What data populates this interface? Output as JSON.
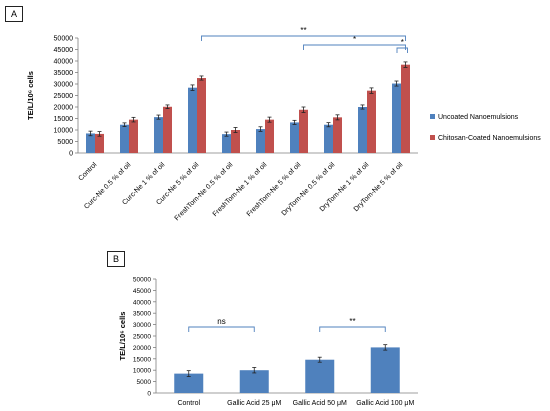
{
  "panels": {
    "a_label": "A",
    "b_label": "B"
  },
  "colors": {
    "uncoated": "#4f81bd",
    "coated": "#c0504d",
    "bracket": "#4f81bd",
    "error": "#222222",
    "axis": "#7f7f7f",
    "text": "#000000"
  },
  "chart_data": [
    {
      "panel": "A",
      "type": "bar",
      "ylabel": "TE/L/10⁶ cells",
      "ylim": [
        0,
        50000
      ],
      "yticks": [
        "0",
        "5000",
        "10000",
        "15000",
        "20000",
        "25000",
        "30000",
        "35000",
        "40000",
        "45000",
        "50000"
      ],
      "legend_position": "right",
      "categories": [
        "Control",
        "Curc-Ne 0.5 % of oil",
        "Curc-Ne 1 % of oil",
        "Curc-Ne 5 % of oil",
        "FreshTom-Ne 0.5 % of oil",
        "FreshTom-Ne 1 % of oil",
        "FreshTom-Ne 5 % of oil",
        "DryTom-Ne 0.5 % of oil",
        "DryTom-Ne 1 % of oil",
        "DryTom-Ne 5 % of oil"
      ],
      "series": [
        {
          "name": "Uncoated Nanoemulsions",
          "values": [
            8500,
            12300,
            15600,
            28400,
            8200,
            10400,
            13300,
            12300,
            20000,
            30200
          ],
          "errors": [
            1000,
            800,
            900,
            1200,
            900,
            1000,
            900,
            900,
            900,
            1100
          ]
        },
        {
          "name": "Chitosan-Coated Nanoemulsions",
          "values": [
            8300,
            14500,
            20100,
            32600,
            10000,
            14500,
            18800,
            15500,
            27100,
            38400
          ],
          "errors": [
            1000,
            1000,
            800,
            900,
            1100,
            1100,
            1200,
            1100,
            1200,
            1200
          ]
        }
      ],
      "annotations": [
        {
          "text": "**",
          "from": 3,
          "to": 9
        },
        {
          "text": "*",
          "from": 6,
          "to": 9
        },
        {
          "text": "*",
          "from": 9,
          "to": 9
        }
      ]
    },
    {
      "panel": "B",
      "type": "bar",
      "ylabel": "TE/L/10⁶ cells",
      "ylim": [
        0,
        50000
      ],
      "yticks": [
        "0",
        "5000",
        "10000",
        "15000",
        "20000",
        "25000",
        "30000",
        "35000",
        "40000",
        "45000",
        "50000"
      ],
      "categories": [
        "Control",
        "Gallic Acid 25 μM",
        "Gallic Acid 50 μM",
        "Gallic Acid 100 μM"
      ],
      "series": [
        {
          "values": [
            8500,
            10000,
            14600,
            20000
          ],
          "errors": [
            1300,
            1200,
            1100,
            1200
          ]
        }
      ],
      "annotations": [
        {
          "text": "ns",
          "from": 0,
          "to": 1
        },
        {
          "text": "**",
          "from": 2,
          "to": 3
        }
      ]
    }
  ]
}
